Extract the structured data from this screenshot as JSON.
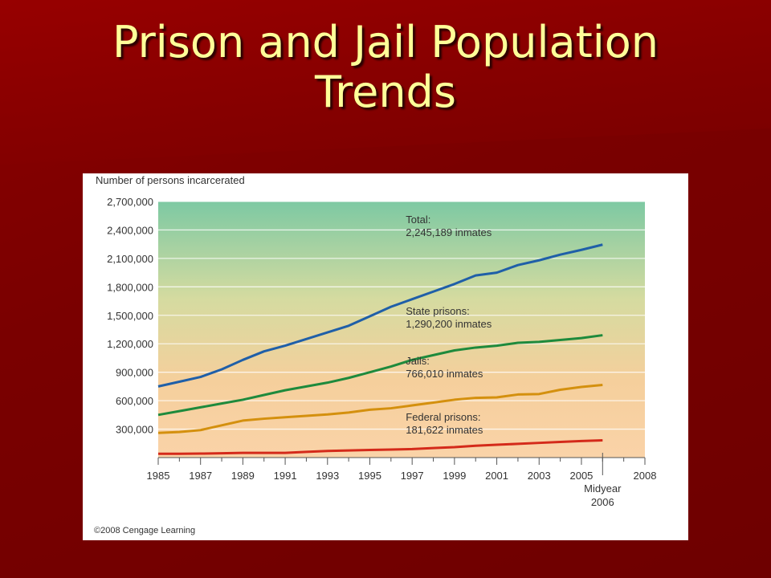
{
  "slide": {
    "title_line1": "Prison and Jail Population",
    "title_line2": "Trends"
  },
  "chart_data": {
    "type": "line",
    "ylabel": "Number of persons incarcerated",
    "credit": "©2008 Cengage Learning",
    "ylim": [
      0,
      2700000
    ],
    "xlim": [
      1985,
      2008
    ],
    "yticks": [
      300000,
      600000,
      900000,
      1200000,
      1500000,
      1800000,
      2100000,
      2400000,
      2700000
    ],
    "ytick_labels": [
      "300,000",
      "600,000",
      "900,000",
      "1,200,000",
      "1,500,000",
      "1,800,000",
      "2,100,000",
      "2,400,000",
      "2,700,000"
    ],
    "xticks": [
      1985,
      1987,
      1989,
      1991,
      1993,
      1995,
      1997,
      1999,
      2001,
      2003,
      2005,
      2008
    ],
    "xtick_labels": [
      "1985",
      "1987",
      "1989",
      "1991",
      "1993",
      "1995",
      "1997",
      "1999",
      "2001",
      "2003",
      "2005",
      "2008"
    ],
    "midyear_label_line1": "Midyear",
    "midyear_label_line2": "2006",
    "midyear_x": 2006,
    "grid": true,
    "background_gradient": [
      "#7dc9a3",
      "#d5dba0",
      "#f5cf9c",
      "#fad3a8"
    ],
    "x": [
      1985,
      1986,
      1987,
      1988,
      1989,
      1990,
      1991,
      1992,
      1993,
      1994,
      1995,
      1996,
      1997,
      1998,
      1999,
      2000,
      2001,
      2002,
      2003,
      2004,
      2005,
      2006
    ],
    "series": [
      {
        "name": "Total",
        "annotation_line1": "Total:",
        "annotation_line2": "2,245,189 inmates",
        "color": "#1f5fa8",
        "values": [
          750000,
          800000,
          850000,
          930000,
          1030000,
          1120000,
          1180000,
          1250000,
          1320000,
          1390000,
          1490000,
          1590000,
          1670000,
          1750000,
          1830000,
          1920000,
          1950000,
          2030000,
          2080000,
          2140000,
          2190000,
          2245189
        ]
      },
      {
        "name": "State prisons",
        "annotation_line1": "State prisons:",
        "annotation_line2": "1,290,200 inmates",
        "color": "#1e8a3c",
        "values": [
          450000,
          490000,
          530000,
          570000,
          610000,
          660000,
          710000,
          750000,
          790000,
          840000,
          900000,
          960000,
          1030000,
          1080000,
          1130000,
          1160000,
          1180000,
          1210000,
          1220000,
          1240000,
          1260000,
          1290200
        ]
      },
      {
        "name": "Jails",
        "annotation_line1": "Jails:",
        "annotation_line2": "766,010 inmates",
        "color": "#d4900e",
        "values": [
          260000,
          270000,
          290000,
          340000,
          390000,
          410000,
          425000,
          440000,
          455000,
          475000,
          505000,
          520000,
          550000,
          580000,
          610000,
          630000,
          635000,
          665000,
          670000,
          715000,
          745000,
          766010
        ]
      },
      {
        "name": "Federal prisons",
        "annotation_line1": "Federal prisons:",
        "annotation_line2": "181,622 inmates",
        "color": "#d42a1a",
        "values": [
          40000,
          40000,
          42000,
          45000,
          50000,
          50000,
          50000,
          60000,
          70000,
          75000,
          80000,
          85000,
          90000,
          100000,
          110000,
          125000,
          135000,
          145000,
          155000,
          165000,
          175000,
          181622
        ]
      }
    ]
  }
}
